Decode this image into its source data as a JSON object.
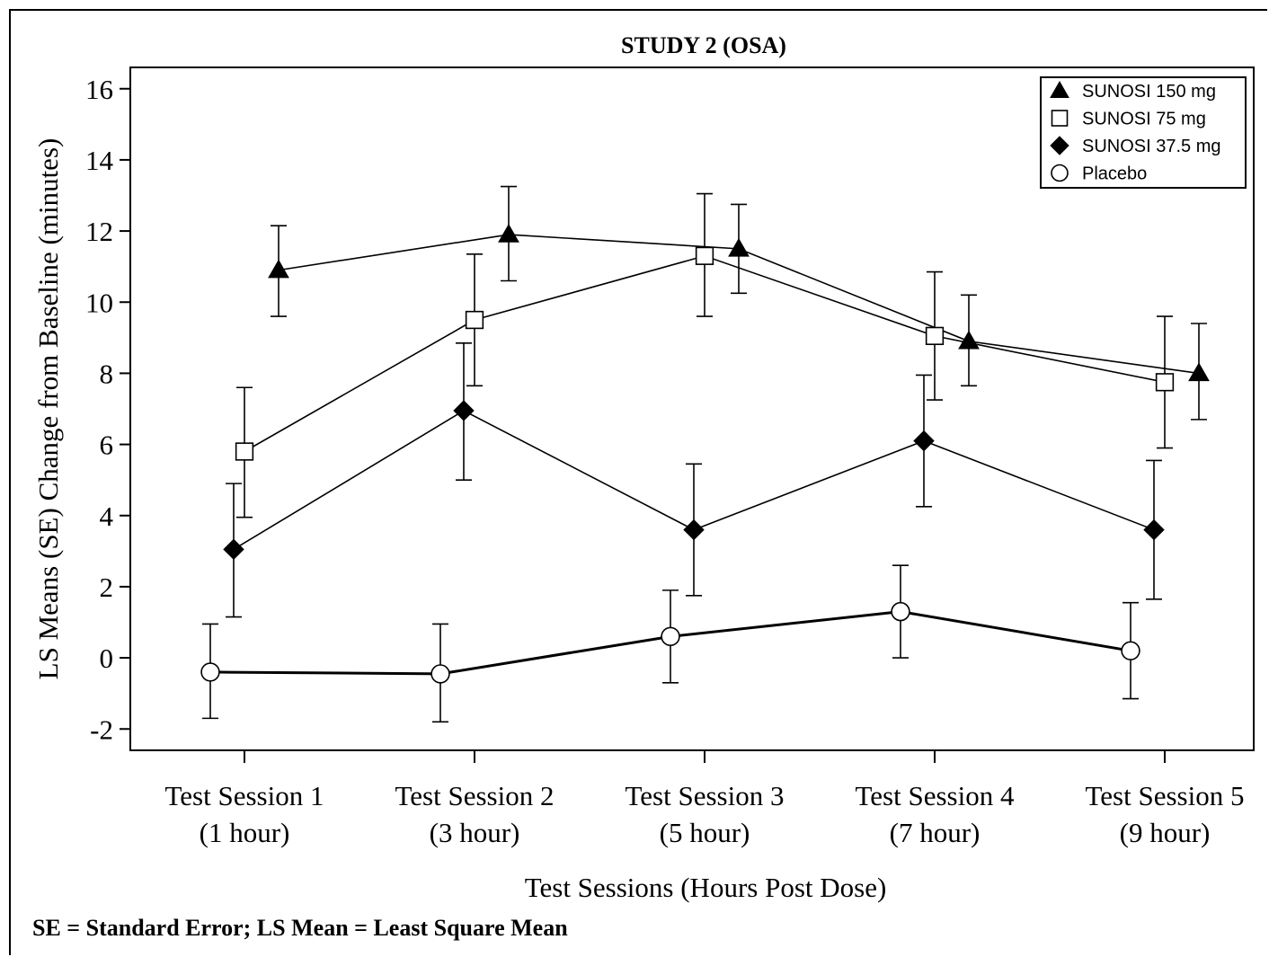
{
  "footnote": "SE = Standard Error; LS Mean = Least Square Mean",
  "chart_data": {
    "type": "line",
    "title": "STUDY 2 (OSA)",
    "xlabel": "Test Sessions (Hours Post Dose)",
    "ylabel": "LS Means (SE) Change from Baseline (minutes)",
    "categories": [
      [
        "Test Session 1",
        "(1 hour)"
      ],
      [
        "Test Session 2",
        "(3 hour)"
      ],
      [
        "Test Session 3",
        "(5 hour)"
      ],
      [
        "Test Session 4",
        "(7 hour)"
      ],
      [
        "Test Session 5",
        "(9 hour)"
      ]
    ],
    "ylim": [
      -2.6,
      16.6
    ],
    "yticks": [
      -2,
      0,
      2,
      4,
      6,
      8,
      10,
      12,
      14,
      16
    ],
    "grid": false,
    "legend_position": "top-right",
    "series": [
      {
        "name": "SUNOSI 150 mg",
        "marker": "triangle",
        "values": [
          10.9,
          11.9,
          11.5,
          8.9,
          8.0
        ],
        "lower": [
          9.6,
          10.6,
          10.25,
          7.65,
          6.7
        ],
        "upper": [
          12.15,
          13.25,
          12.75,
          10.2,
          9.4
        ]
      },
      {
        "name": "SUNOSI 75 mg",
        "marker": "square",
        "values": [
          5.8,
          9.5,
          11.3,
          9.05,
          7.75
        ],
        "lower": [
          3.95,
          7.65,
          9.6,
          7.25,
          5.9
        ],
        "upper": [
          7.6,
          11.35,
          13.05,
          10.85,
          9.6
        ]
      },
      {
        "name": "SUNOSI 37.5 mg",
        "marker": "diamond",
        "values": [
          3.05,
          6.95,
          3.6,
          6.1,
          3.6
        ],
        "lower": [
          1.15,
          5.0,
          1.75,
          4.25,
          1.65
        ],
        "upper": [
          4.9,
          8.85,
          5.45,
          7.95,
          5.55
        ]
      },
      {
        "name": "Placebo",
        "marker": "circle",
        "values": [
          -0.4,
          -0.45,
          0.6,
          1.3,
          0.2
        ],
        "lower": [
          -1.7,
          -1.8,
          -0.7,
          0.0,
          -1.15
        ],
        "upper": [
          0.95,
          0.95,
          1.9,
          2.6,
          1.55
        ]
      }
    ]
  }
}
